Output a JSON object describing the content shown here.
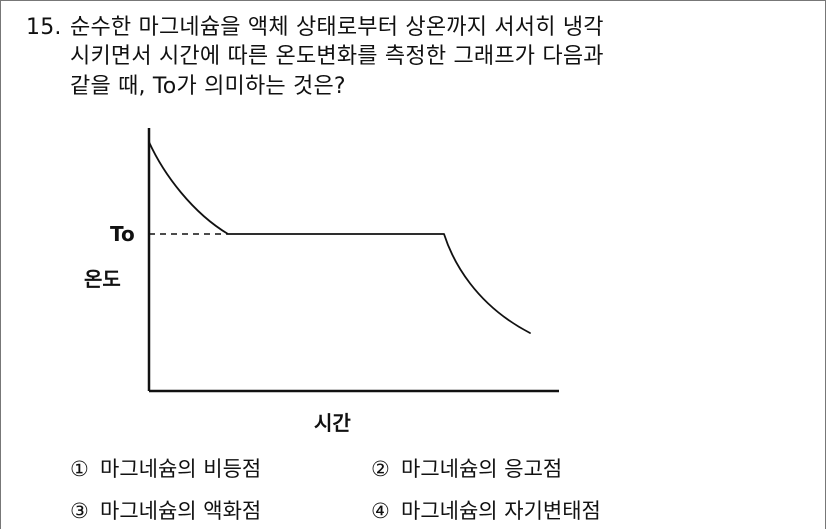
{
  "question": {
    "number": "15.",
    "lines": [
      "순수한 마그네슘을 액체 상태로부터 상온까지 서서히 냉각",
      "시키면서 시간에 따른 온도변화를 측정한 그래프가 다음과",
      "같을 때, To가 의미하는 것은?"
    ]
  },
  "graph": {
    "y_label": "온도",
    "x_label": "시간",
    "marker_label": "To"
  },
  "choices": [
    {
      "num": "①",
      "text": "마그네슘의 비등점"
    },
    {
      "num": "②",
      "text": "마그네슘의 응고점"
    },
    {
      "num": "③",
      "text": "마그네슘의 액화점"
    },
    {
      "num": "④",
      "text": "마그네슘의 자기변태점"
    }
  ]
}
